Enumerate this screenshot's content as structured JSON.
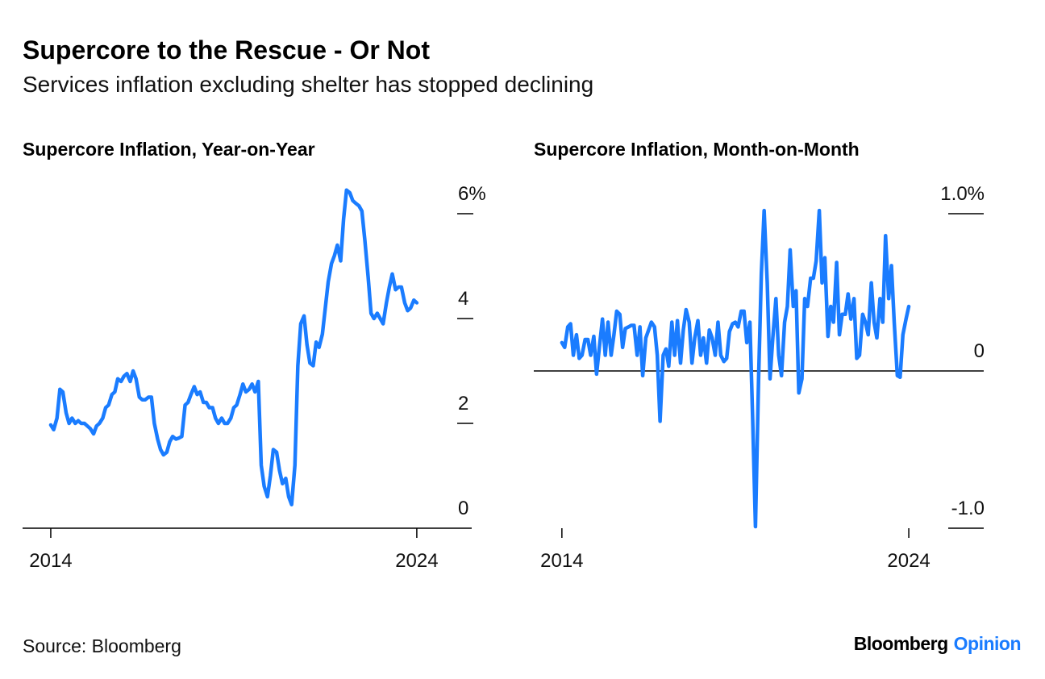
{
  "title": "Supercore to the Rescue - Or Not",
  "subtitle": "Services inflation excluding shelter has stopped declining",
  "source": "Source: Bloomberg",
  "brand": {
    "name": "Bloomberg",
    "tag": "Opinion"
  },
  "chart_data": [
    {
      "type": "line",
      "title": "Supercore Inflation, Year-on-Year",
      "color": "#1a7cff",
      "x": [
        2014,
        2014.08,
        2014.17,
        2014.25,
        2014.33,
        2014.42,
        2014.5,
        2014.58,
        2014.67,
        2014.75,
        2014.83,
        2014.92,
        2015,
        2015.08,
        2015.17,
        2015.25,
        2015.33,
        2015.42,
        2015.5,
        2015.58,
        2015.67,
        2015.75,
        2015.83,
        2015.92,
        2016,
        2016.08,
        2016.17,
        2016.25,
        2016.33,
        2016.42,
        2016.5,
        2016.58,
        2016.67,
        2016.75,
        2016.83,
        2016.92,
        2017,
        2017.08,
        2017.17,
        2017.25,
        2017.33,
        2017.42,
        2017.5,
        2017.58,
        2017.67,
        2017.75,
        2017.83,
        2017.92,
        2018,
        2018.08,
        2018.17,
        2018.25,
        2018.33,
        2018.42,
        2018.5,
        2018.58,
        2018.67,
        2018.75,
        2018.83,
        2018.92,
        2019,
        2019.08,
        2019.17,
        2019.25,
        2019.33,
        2019.42,
        2019.5,
        2019.58,
        2019.67,
        2019.75,
        2019.83,
        2019.92,
        2020,
        2020.08,
        2020.17,
        2020.25,
        2020.33,
        2020.42,
        2020.5,
        2020.58,
        2020.67,
        2020.75,
        2020.83,
        2020.92,
        2021,
        2021.08,
        2021.17,
        2021.25,
        2021.33,
        2021.42,
        2021.5,
        2021.58,
        2021.67,
        2021.75,
        2021.83,
        2021.92,
        2022,
        2022.08,
        2022.17,
        2022.25,
        2022.33,
        2022.42,
        2022.5,
        2022.58,
        2022.67,
        2022.75,
        2022.83,
        2022.92,
        2023,
        2023.08,
        2023.17,
        2023.25,
        2023.33,
        2023.42,
        2023.5,
        2023.58,
        2023.67,
        2023.75,
        2023.83,
        2023.92,
        2024
      ],
      "values": [
        1.97,
        1.88,
        2.1,
        2.65,
        2.6,
        2.2,
        2,
        2.1,
        2,
        2.05,
        2,
        2,
        1.95,
        1.9,
        1.8,
        1.95,
        2,
        2.1,
        2.3,
        2.35,
        2.55,
        2.6,
        2.85,
        2.8,
        2.9,
        2.95,
        2.8,
        3,
        2.85,
        2.5,
        2.45,
        2.45,
        2.5,
        2.5,
        2,
        1.7,
        1.5,
        1.4,
        1.45,
        1.65,
        1.75,
        1.7,
        1.72,
        1.75,
        2.35,
        2.4,
        2.55,
        2.7,
        2.55,
        2.6,
        2.4,
        2.4,
        2.3,
        2.3,
        2.1,
        2,
        2.1,
        2,
        2,
        2.1,
        2.3,
        2.35,
        2.55,
        2.75,
        2.6,
        2.65,
        2.75,
        2.6,
        2.8,
        1.2,
        0.8,
        0.6,
        1,
        1.5,
        1.45,
        1.1,
        0.85,
        0.95,
        0.6,
        0.45,
        1.2,
        3.1,
        3.9,
        4.05,
        3.5,
        3.15,
        3.1,
        3.55,
        3.45,
        3.7,
        4.2,
        4.7,
        5.05,
        5.2,
        5.4,
        5.1,
        5.9,
        6.45,
        6.4,
        6.25,
        6.2,
        6.15,
        6.05,
        5.5,
        4.8,
        4.1,
        4,
        4.1,
        4,
        3.9,
        4.3,
        4.6,
        4.85,
        4.55,
        4.6,
        4.6,
        4.3,
        4.15,
        4.2,
        4.35,
        4.3
      ],
      "xlim": [
        2013.23,
        2025.5
      ],
      "xticks": [
        2014,
        2024
      ],
      "ylim": [
        0,
        6.5
      ],
      "yticks": [
        {
          "value": 6,
          "label": "6%"
        },
        4,
        2,
        0
      ]
    },
    {
      "type": "line",
      "title": "Supercore Inflation, Month-on-Month",
      "color": "#1a7cff",
      "x": [
        2014,
        2014.08,
        2014.17,
        2014.25,
        2014.33,
        2014.42,
        2014.5,
        2014.58,
        2014.67,
        2014.75,
        2014.83,
        2014.92,
        2015,
        2015.08,
        2015.17,
        2015.25,
        2015.33,
        2015.42,
        2015.5,
        2015.58,
        2015.67,
        2015.75,
        2015.83,
        2015.92,
        2016,
        2016.08,
        2016.17,
        2016.25,
        2016.33,
        2016.42,
        2016.5,
        2016.58,
        2016.67,
        2016.75,
        2016.83,
        2016.92,
        2017,
        2017.08,
        2017.17,
        2017.25,
        2017.33,
        2017.42,
        2017.5,
        2017.58,
        2017.67,
        2017.75,
        2017.83,
        2017.92,
        2018,
        2018.08,
        2018.17,
        2018.25,
        2018.33,
        2018.42,
        2018.5,
        2018.58,
        2018.67,
        2018.75,
        2018.83,
        2018.92,
        2019,
        2019.08,
        2019.17,
        2019.25,
        2019.33,
        2019.42,
        2019.5,
        2019.58,
        2019.67,
        2019.75,
        2019.83,
        2019.92,
        2020,
        2020.08,
        2020.17,
        2020.25,
        2020.33,
        2020.42,
        2020.5,
        2020.58,
        2020.67,
        2020.75,
        2020.83,
        2020.92,
        2021,
        2021.08,
        2021.17,
        2021.25,
        2021.33,
        2021.42,
        2021.5,
        2021.58,
        2021.67,
        2021.75,
        2021.83,
        2021.92,
        2022,
        2022.08,
        2022.17,
        2022.25,
        2022.33,
        2022.42,
        2022.5,
        2022.58,
        2022.67,
        2022.75,
        2022.83,
        2022.92,
        2023,
        2023.08,
        2023.17,
        2023.25,
        2023.33,
        2023.42,
        2023.5,
        2023.58,
        2023.67,
        2023.75,
        2023.83,
        2023.92,
        2024
      ],
      "values": [
        0.18,
        0.15,
        0.28,
        0.3,
        0.1,
        0.23,
        0.08,
        0.1,
        0.2,
        0.2,
        0.1,
        0.22,
        -0.02,
        0.15,
        0.33,
        0.1,
        0.31,
        0.1,
        0.23,
        0.38,
        0.36,
        0.15,
        0.27,
        0.28,
        0.29,
        0.29,
        0.1,
        0.28,
        -0.03,
        0.21,
        0.26,
        0.31,
        0.28,
        0.1,
        -0.32,
        0.1,
        0.14,
        0.03,
        0.31,
        0.1,
        0.32,
        0.05,
        0.26,
        0.39,
        0.31,
        0.05,
        0.21,
        0.32,
        0.1,
        0.21,
        0.05,
        0.26,
        0.21,
        0.1,
        0.31,
        0.1,
        0.06,
        0.08,
        0.25,
        0.3,
        0.31,
        0.28,
        0.38,
        0.38,
        0.18,
        0.31,
        -0.31,
        -0.99,
        -0.05,
        0.62,
        1.02,
        0.56,
        -0.05,
        0.21,
        0.46,
        0.1,
        -0.03,
        0.31,
        0.41,
        0.77,
        0.41,
        0.51,
        -0.14,
        -0.05,
        0.46,
        0.41,
        0.59,
        0.59,
        0.7,
        1.02,
        0.56,
        0.72,
        0.22,
        0.41,
        0.31,
        0.69,
        0.23,
        0.36,
        0.36,
        0.49,
        0.33,
        0.46,
        0.08,
        0.1,
        0.36,
        0.31,
        0.23,
        0.56,
        0.31,
        0.21,
        0.46,
        0.31,
        0.86,
        0.46,
        0.67,
        0.31,
        -0.03,
        -0.04,
        0.23,
        0.33,
        0.41
      ],
      "xlim": [
        2013.19,
        2026.16
      ],
      "xticks": [
        2014,
        2024
      ],
      "ylim": [
        -1,
        1.1
      ],
      "yticks": [
        {
          "value": 1,
          "label": "1.0%"
        },
        0,
        {
          "value": -1,
          "label": "-1.0"
        }
      ]
    }
  ]
}
